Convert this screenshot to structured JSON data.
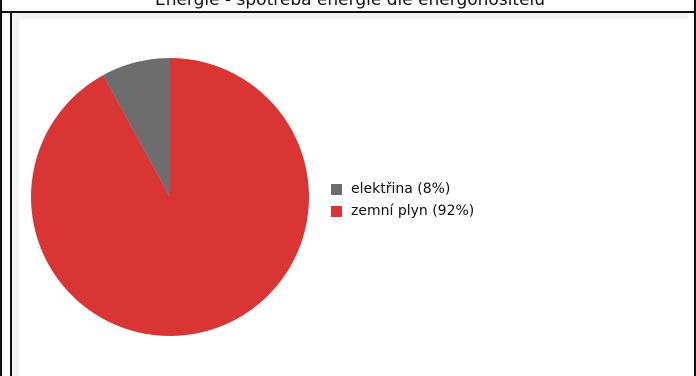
{
  "chart_data": {
    "type": "pie",
    "title": "Energie - spotřeba energie dle energonositelů",
    "series": [
      {
        "name": "elektřina (8%)",
        "value": 8,
        "color": "#6d6d6d"
      },
      {
        "name": "zemní plyn (92%)",
        "value": 92,
        "color": "#d93534"
      }
    ],
    "legend_position": "right",
    "start_angle_deg": -90,
    "direction": "counterclockwise-from-top"
  }
}
